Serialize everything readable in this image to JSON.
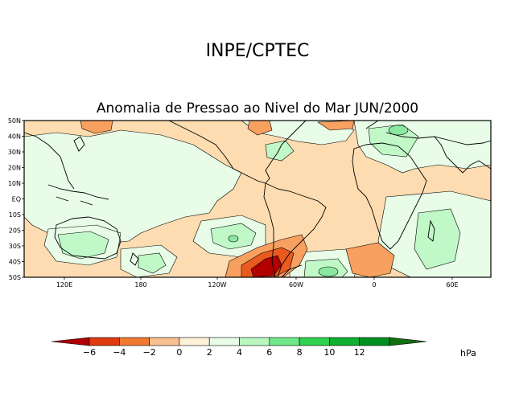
{
  "header": {
    "institution": "INPE/CPTEC",
    "title": "Anomalia de Pressao ao Nivel do Mar JUN/2000"
  },
  "map": {
    "lat_labels": [
      "50N",
      "40N",
      "30N",
      "20N",
      "10N",
      "EQ",
      "10S",
      "20S",
      "30S",
      "40S",
      "50S"
    ],
    "lon_labels": [
      "120E",
      "180",
      "120W",
      "60W",
      "0",
      "60E"
    ],
    "colors": {
      "ocean_base": "#fff0d8",
      "land_base": "#fff0d8",
      "neg_2_0": "#fcdcb0",
      "pos_0_2": "#e8fce8",
      "pos_2_4": "#c0f8c8",
      "pos_4_6": "#8ae8a0",
      "neg_4_2": "#f8a060",
      "neg_6_4": "#e85a20",
      "neg_lt_6": "#b00000",
      "coast": "#000000"
    }
  },
  "colorbar": {
    "labels": [
      "−6",
      "−4",
      "−2",
      "0",
      "2",
      "4",
      "6",
      "8",
      "10",
      "12"
    ],
    "unit": "hPa",
    "colors": [
      "#b00000",
      "#e03a10",
      "#f07a30",
      "#f8c090",
      "#fff0d8",
      "#e8fce8",
      "#b8f8c0",
      "#70e888",
      "#30d050",
      "#10b030",
      "#009020",
      "#107010"
    ]
  }
}
